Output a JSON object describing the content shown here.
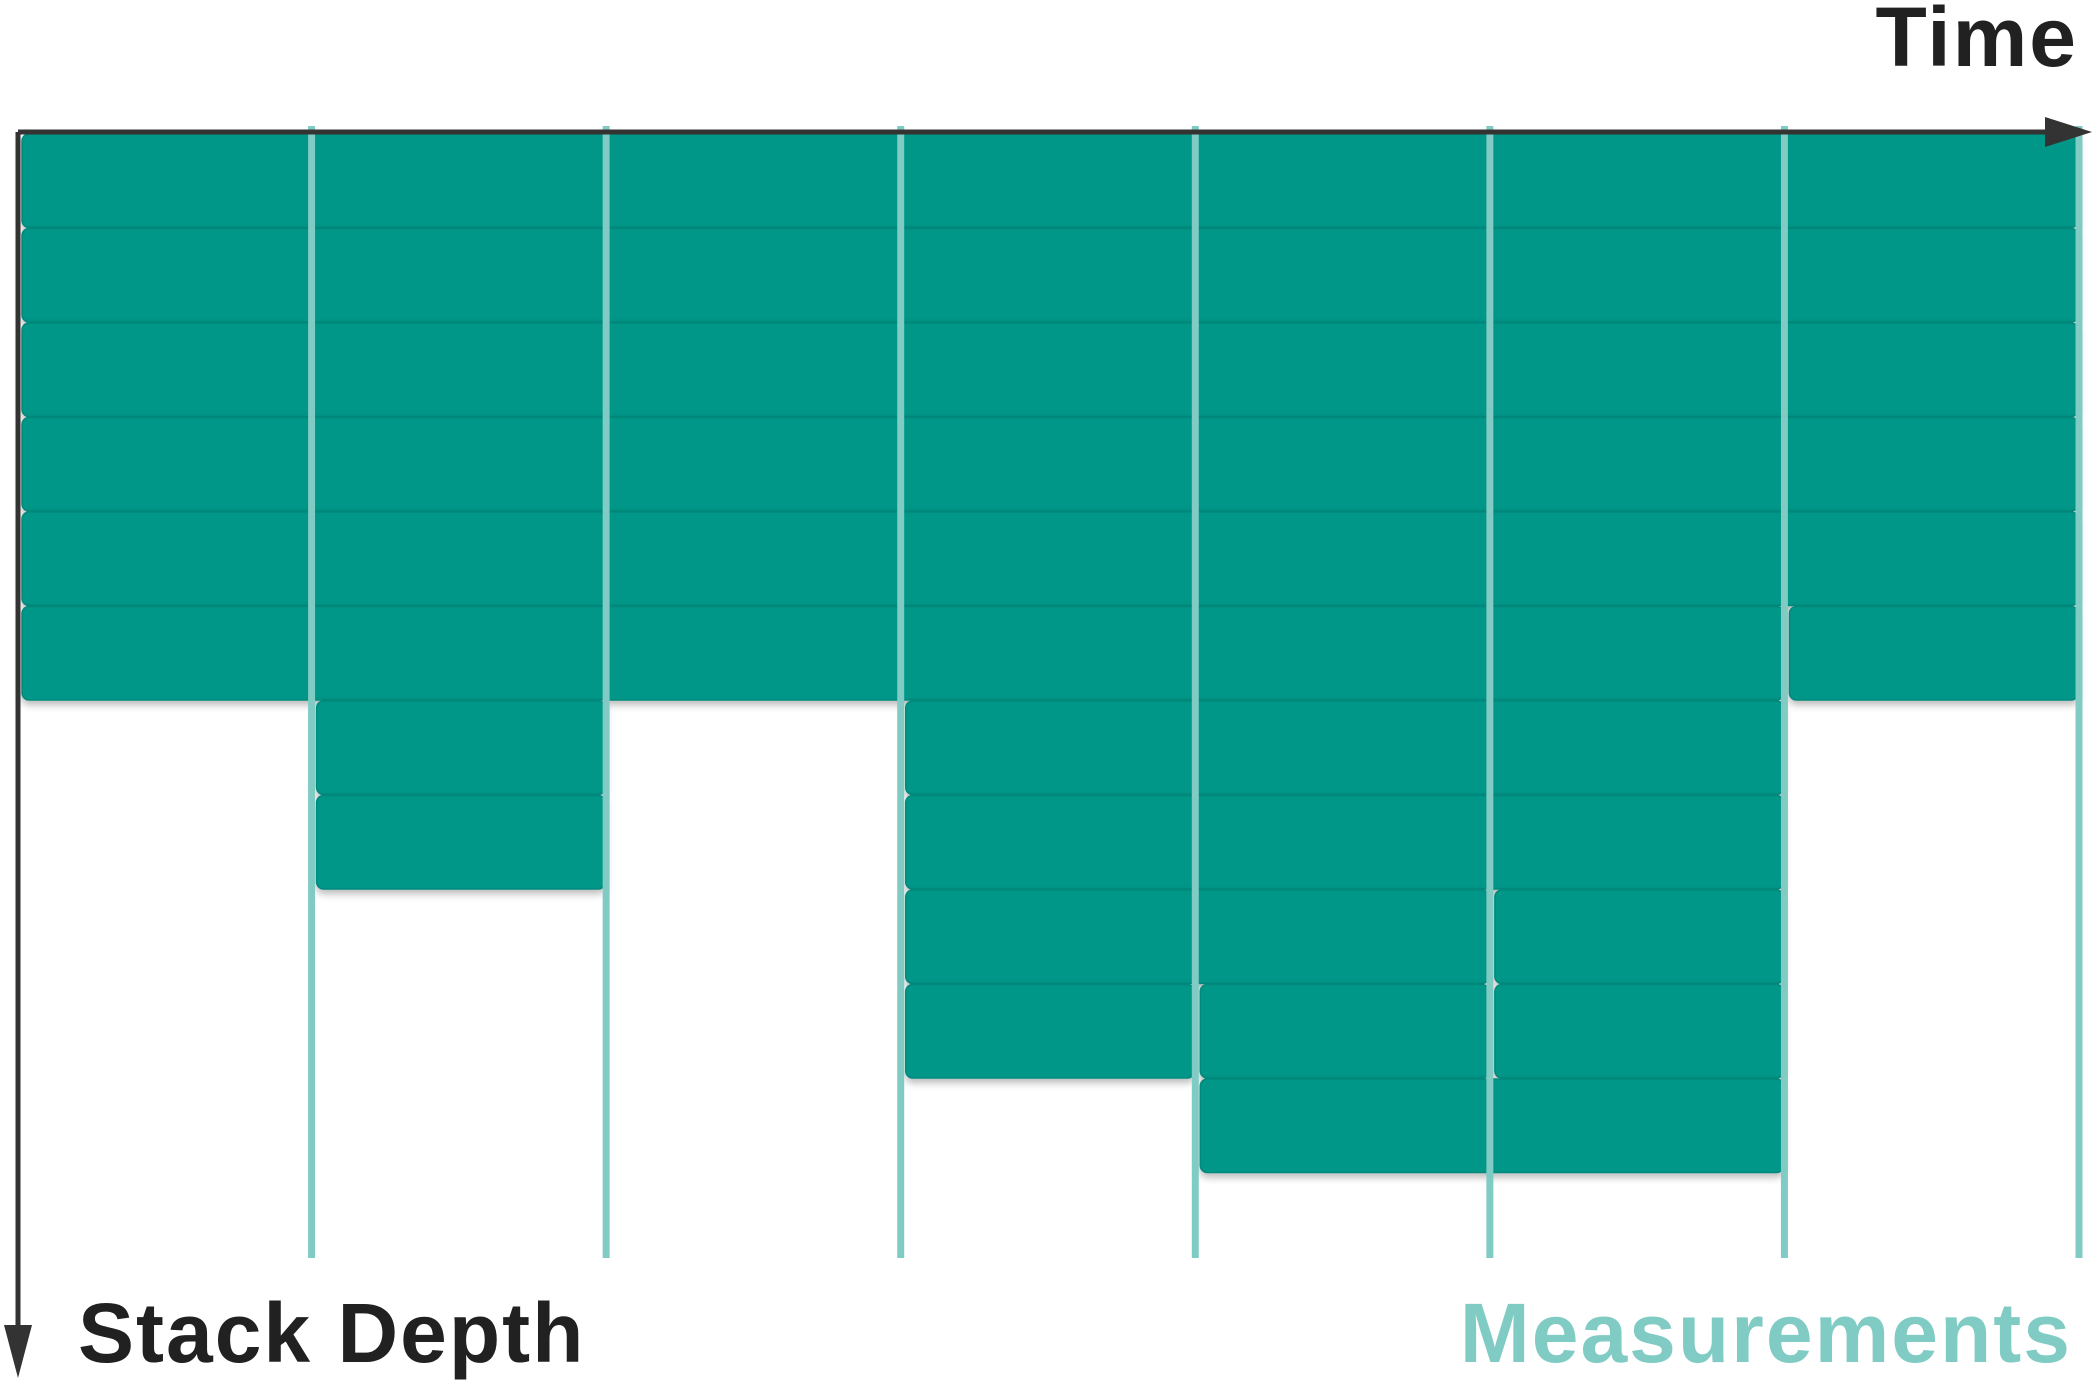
{
  "labels": {
    "time": "Time",
    "stack_depth": "Stack Depth",
    "measurements": "Measurements"
  },
  "colors": {
    "axis": "#333333",
    "label": "#212121",
    "block": "#009688",
    "block_edge": "#00897b",
    "measurement_line": "#80cbc4",
    "measurement_label": "#80cbc4"
  },
  "measurement_count": 7,
  "stack_samples": [
    {
      "measurement": 1,
      "depth": 6
    },
    {
      "measurement": 2,
      "depth": 8
    },
    {
      "measurement": 3,
      "depth": 6
    },
    {
      "measurement": 4,
      "depth": 10
    },
    {
      "measurement": 5,
      "depth": 11
    },
    {
      "measurement": 6,
      "depth": 11
    },
    {
      "measurement": 7,
      "depth": 6
    }
  ],
  "frames": [
    {
      "depth": 1,
      "from": 1,
      "to": 7
    },
    {
      "depth": 2,
      "from": 1,
      "to": 7
    },
    {
      "depth": 3,
      "from": 1,
      "to": 7
    },
    {
      "depth": 4,
      "from": 1,
      "to": 7
    },
    {
      "depth": 5,
      "from": 1,
      "to": 7
    },
    {
      "depth": 6,
      "from": 1,
      "to": 6
    },
    {
      "depth": 6,
      "from": 7,
      "to": 7
    },
    {
      "depth": 7,
      "from": 2,
      "to": 2
    },
    {
      "depth": 7,
      "from": 4,
      "to": 6
    },
    {
      "depth": 8,
      "from": 2,
      "to": 2
    },
    {
      "depth": 8,
      "from": 4,
      "to": 6
    },
    {
      "depth": 9,
      "from": 4,
      "to": 5
    },
    {
      "depth": 9,
      "from": 6,
      "to": 6
    },
    {
      "depth": 10,
      "from": 4,
      "to": 4
    },
    {
      "depth": 10,
      "from": 5,
      "to": 5
    },
    {
      "depth": 10,
      "from": 6,
      "to": 6
    },
    {
      "depth": 11,
      "from": 5,
      "to": 6
    }
  ]
}
